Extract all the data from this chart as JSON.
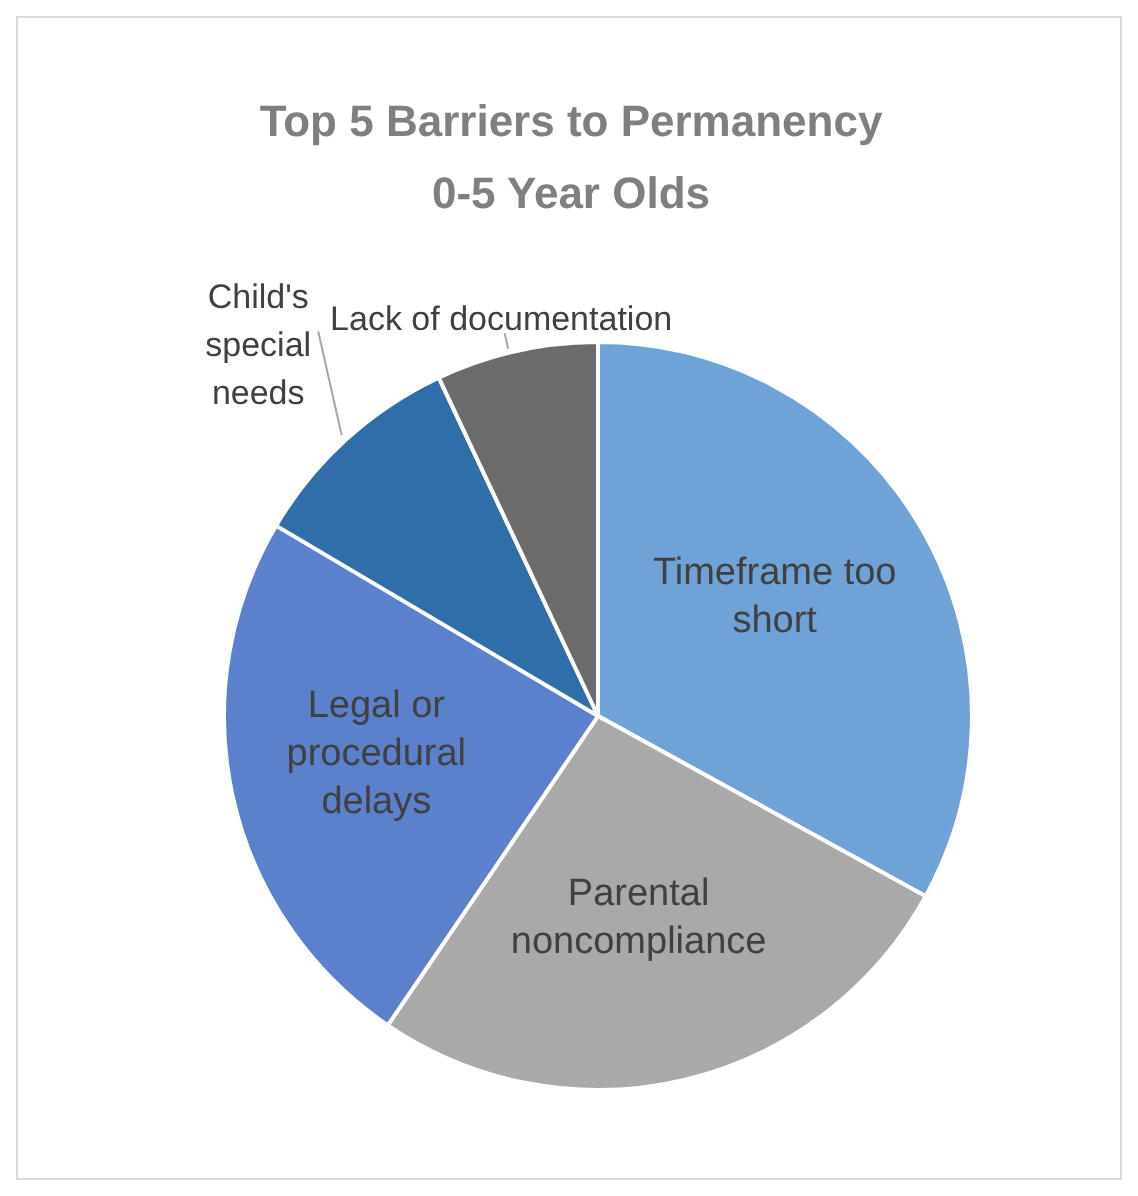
{
  "chart_data": {
    "type": "pie",
    "title": "Top 5 Barriers to Permanency\n0-5 Year Olds",
    "categories": [
      "Timeframe too short",
      "Parental noncompliance",
      "Legal or procedural delays",
      "Child's special needs",
      "Lack of documentation"
    ],
    "values": [
      33,
      26.5,
      24,
      9.5,
      7
    ],
    "colors": [
      "#6fa3d8",
      "#a9a9a9",
      "#5b80cc",
      "#2f6ea8",
      "#6b6b6b"
    ],
    "legend": false
  }
}
